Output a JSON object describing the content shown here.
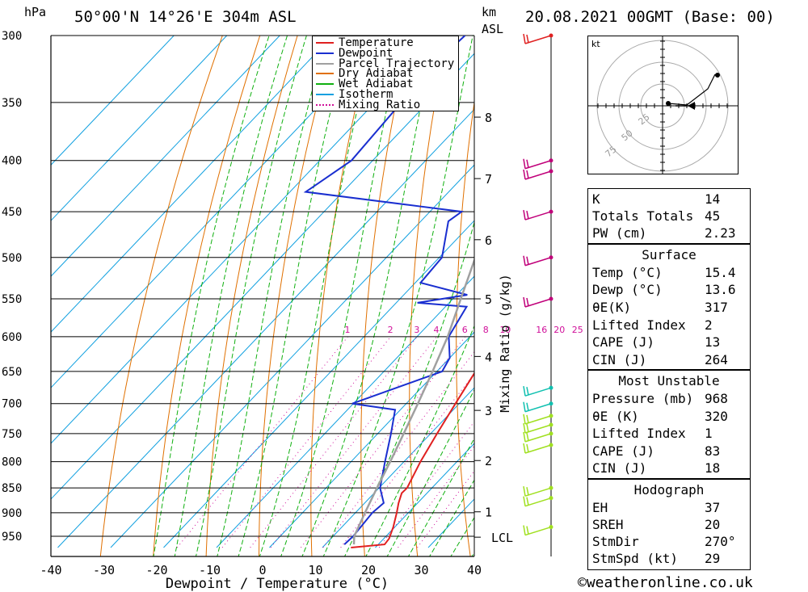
{
  "header": {
    "pressure_unit": "hPa",
    "location": "50°00'N  14°26'E  304m  ASL",
    "km_unit": "km",
    "asl_unit": "ASL",
    "datetime": "20.08.2021  00GMT  (Base: 00)"
  },
  "footer": {
    "copyright": "©weatheronline.co.uk"
  },
  "colors": {
    "temperature": "#e02020",
    "dewpoint": "#1a2fd0",
    "parcel": "#a0a0a0",
    "dry_adiabat": "#e07000",
    "wet_adiabat": "#10b010",
    "isotherm": "#10a0e0",
    "mixing_ratio": "#d0109a"
  },
  "chart_data": {
    "type": "line",
    "title": "",
    "xlabel": "Dewpoint / Temperature (°C)",
    "ylabel": "hPa",
    "xlim": [
      -40,
      40
    ],
    "ylim": [
      975,
      300
    ],
    "x_ticks": [
      "-40",
      "-30",
      "-20",
      "-10",
      "0",
      "10",
      "20",
      "30",
      "40"
    ],
    "pressure_levels": [
      {
        "p": 300,
        "label": "300"
      },
      {
        "p": 350,
        "label": "350"
      },
      {
        "p": 400,
        "label": "400"
      },
      {
        "p": 450,
        "label": "450"
      },
      {
        "p": 500,
        "label": "500"
      },
      {
        "p": 550,
        "label": "550"
      },
      {
        "p": 600,
        "label": "600"
      },
      {
        "p": 650,
        "label": "650"
      },
      {
        "p": 700,
        "label": "700"
      },
      {
        "p": 750,
        "label": "750"
      },
      {
        "p": 800,
        "label": "800"
      },
      {
        "p": 850,
        "label": "850"
      },
      {
        "p": 900,
        "label": "900"
      },
      {
        "p": 950,
        "label": "950"
      }
    ],
    "km_ticks": [
      {
        "p": 362,
        "label": "8"
      },
      {
        "p": 417,
        "label": "7"
      },
      {
        "p": 480,
        "label": "6"
      },
      {
        "p": 550,
        "label": "5"
      },
      {
        "p": 628,
        "label": "4"
      },
      {
        "p": 711,
        "label": "3"
      },
      {
        "p": 798,
        "label": "2"
      },
      {
        "p": 898,
        "label": "1"
      },
      {
        "p": 952,
        "label": "LCL"
      }
    ],
    "mixing_ratio_label": "Mixing Ratio (g/kg)",
    "mixing_ratio_values": [
      "1",
      "2",
      "3",
      "4",
      "6",
      "8",
      "10",
      "16",
      "20",
      "25"
    ],
    "legend": [
      {
        "name": "Temperature",
        "color": "#e02020",
        "dashed": false
      },
      {
        "name": "Dewpoint",
        "color": "#1a2fd0",
        "dashed": false
      },
      {
        "name": "Parcel Trajectory",
        "color": "#a0a0a0",
        "dashed": false
      },
      {
        "name": "Dry Adiabat",
        "color": "#e07000",
        "dashed": false
      },
      {
        "name": "Wet Adiabat",
        "color": "#10b010",
        "dashed": false
      },
      {
        "name": "Isotherm",
        "color": "#10a0e0",
        "dashed": false
      },
      {
        "name": "Mixing Ratio",
        "color": "#d0109a",
        "dashed": true
      }
    ],
    "series": [
      {
        "id": "temperature",
        "color": "#e02020",
        "points": [
          [
            975,
            15.4
          ],
          [
            968,
            21.2
          ],
          [
            955,
            21.0
          ],
          [
            930,
            19.7
          ],
          [
            900,
            17.8
          ],
          [
            880,
            16.4
          ],
          [
            860,
            15.2
          ],
          [
            850,
            15.3
          ],
          [
            800,
            13.1
          ],
          [
            750,
            11.2
          ],
          [
            700,
            9.3
          ],
          [
            650,
            7.3
          ],
          [
            600,
            3.9
          ],
          [
            560,
            -0.2
          ],
          [
            550,
            -0.9
          ],
          [
            545,
            -2.5
          ],
          [
            500,
            -5.8
          ],
          [
            450,
            -12.4
          ],
          [
            400,
            -19.5
          ],
          [
            350,
            -27.7
          ],
          [
            300,
            -37.5
          ]
        ]
      },
      {
        "id": "dewpoint",
        "color": "#1a2fd0",
        "points": [
          [
            968,
            13.6
          ],
          [
            950,
            13.8
          ],
          [
            900,
            13.2
          ],
          [
            880,
            13.6
          ],
          [
            850,
            10.2
          ],
          [
            800,
            6.4
          ],
          [
            750,
            2.5
          ],
          [
            710,
            -1.0
          ],
          [
            700,
            -10.2
          ],
          [
            650,
            1.0
          ],
          [
            630,
            0.0
          ],
          [
            600,
            -4.0
          ],
          [
            560,
            -6.0
          ],
          [
            555,
            -16.0
          ],
          [
            545,
            -8.0
          ],
          [
            530,
            -19.0
          ],
          [
            500,
            -19.5
          ],
          [
            460,
            -24.8
          ],
          [
            450,
            -24.0
          ],
          [
            430,
            -57.0
          ],
          [
            400,
            -54.0
          ],
          [
            350,
            -55.0
          ],
          [
            330,
            -56.0
          ],
          [
            300,
            -55.0
          ]
        ]
      },
      {
        "id": "parcel",
        "color": "#a0a0a0",
        "points": [
          [
            968,
            15.4
          ],
          [
            950,
            14.0
          ],
          [
            900,
            11.8
          ],
          [
            850,
            9.6
          ],
          [
            800,
            7.4
          ],
          [
            750,
            4.9
          ],
          [
            700,
            2.2
          ],
          [
            650,
            -0.8
          ],
          [
            600,
            -4.2
          ],
          [
            550,
            -8.5
          ],
          [
            500,
            -13.2
          ],
          [
            450,
            -18.8
          ],
          [
            400,
            -25.5
          ],
          [
            350,
            -33.5
          ],
          [
            300,
            -43.0
          ]
        ]
      }
    ],
    "wind_barbs": [
      {
        "p": 300,
        "color": "#e02020"
      },
      {
        "p": 400,
        "color": "#c0007a"
      },
      {
        "p": 410,
        "color": "#c0007a"
      },
      {
        "p": 450,
        "color": "#c0007a"
      },
      {
        "p": 500,
        "color": "#c0007a"
      },
      {
        "p": 550,
        "color": "#c0007a"
      },
      {
        "p": 675,
        "color": "#10c0b0"
      },
      {
        "p": 700,
        "color": "#10c0b0"
      },
      {
        "p": 720,
        "color": "#a0e020"
      },
      {
        "p": 735,
        "color": "#a0e020"
      },
      {
        "p": 750,
        "color": "#a0e020"
      },
      {
        "p": 770,
        "color": "#a0e020"
      },
      {
        "p": 850,
        "color": "#a0e020"
      },
      {
        "p": 870,
        "color": "#a0e020"
      },
      {
        "p": 930,
        "color": "#a0e020"
      }
    ],
    "hodograph": {
      "unit": "kt",
      "ring_labels": [
        "25",
        "50",
        "75"
      ]
    }
  },
  "indices": {
    "general": [
      {
        "label": "K",
        "value": "14"
      },
      {
        "label": "Totals Totals",
        "value": "45"
      },
      {
        "label": "PW (cm)",
        "value": "2.23"
      }
    ],
    "surface_title": "Surface",
    "surface": [
      {
        "label": "Temp (°C)",
        "value": "15.4"
      },
      {
        "label": "Dewp (°C)",
        "value": "13.6"
      },
      {
        "label": "θE(K)",
        "value": "317"
      },
      {
        "label": "Lifted Index",
        "value": "2"
      },
      {
        "label": "CAPE (J)",
        "value": "13"
      },
      {
        "label": "CIN (J)",
        "value": "264"
      }
    ],
    "unstable_title": "Most Unstable",
    "unstable": [
      {
        "label": "Pressure (mb)",
        "value": "968"
      },
      {
        "label": "θE (K)",
        "value": "320"
      },
      {
        "label": "Lifted Index",
        "value": "1"
      },
      {
        "label": "CAPE (J)",
        "value": "83"
      },
      {
        "label": "CIN (J)",
        "value": "18"
      }
    ],
    "hodo_title": "Hodograph",
    "hodo": [
      {
        "label": "EH",
        "value": "37"
      },
      {
        "label": "SREH",
        "value": "20"
      },
      {
        "label": "StmDir",
        "value": "270°"
      },
      {
        "label": "StmSpd (kt)",
        "value": "29"
      }
    ]
  }
}
